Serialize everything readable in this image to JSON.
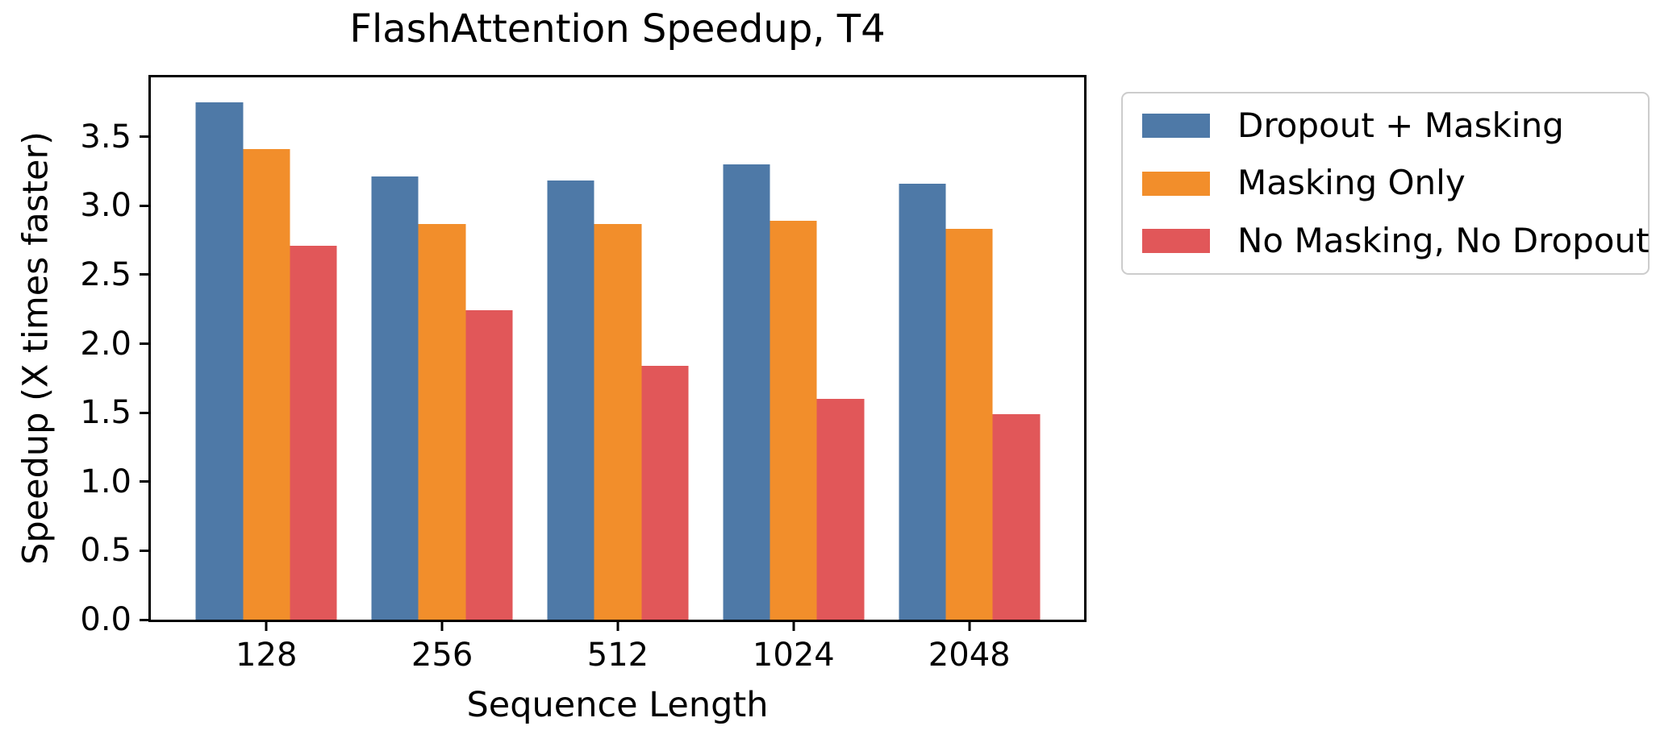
{
  "figure": {
    "title": "FlashAttention Speedup, T4"
  },
  "chart_data": {
    "type": "bar",
    "title": "FlashAttention Speedup, T4",
    "xlabel": "Sequence Length",
    "ylabel": "Speedup (X times faster)",
    "categories": [
      "128",
      "256",
      "512",
      "1024",
      "2048"
    ],
    "series": [
      {
        "name": "Dropout + Masking",
        "color": "#4E79A7",
        "values": [
          3.75,
          3.21,
          3.18,
          3.3,
          3.16
        ]
      },
      {
        "name": "Masking Only",
        "color": "#F28E2B",
        "values": [
          3.41,
          2.87,
          2.87,
          2.89,
          2.83
        ]
      },
      {
        "name": "No Masking, No Dropout",
        "color": "#E15759",
        "values": [
          2.71,
          2.24,
          1.84,
          1.6,
          1.49
        ]
      }
    ],
    "yticks": [
      "0.0",
      "0.5",
      "1.0",
      "1.5",
      "2.0",
      "2.5",
      "3.0",
      "3.5"
    ],
    "ylim": [
      0,
      3.93
    ],
    "grid": false,
    "legend_position": "upper-right-outside",
    "colors": {
      "axis": "#000000",
      "text": "#000000",
      "legend_border": "#cccccc",
      "background": "#ffffff"
    }
  }
}
